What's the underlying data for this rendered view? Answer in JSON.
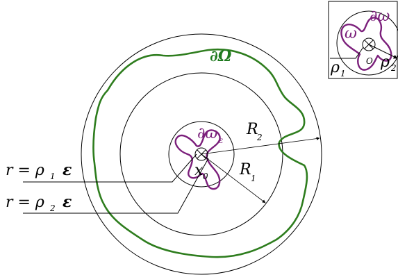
{
  "colors": {
    "boundary_omega": "#2e7d1e",
    "boundary_small": "#7b1f7b",
    "circles": "#000000",
    "arrows": "#000000"
  },
  "main": {
    "boundary_label": "∂Ω",
    "inner_boundary_label": "∂ω",
    "inner_boundary_sub": "ε",
    "center_label": "x",
    "center_sub": "0",
    "radius_outer_label": "R",
    "radius_outer_sub": "2",
    "radius_inner_label": "R",
    "radius_inner_sub": "1",
    "r1_text_prefix": "r = ρ",
    "r1_sub": "1",
    "r1_suffix": "ε",
    "r2_text_prefix": "r = ρ",
    "r2_sub": "2",
    "r2_suffix": "ε",
    "center_mark_icon": "cross-circle-icon"
  },
  "inset": {
    "omega_label": "ω",
    "boundary_label": "∂ω",
    "origin_label": "O",
    "rho1_label": "ρ",
    "rho1_sub": "1",
    "rho2_label": "ρ",
    "rho2_sub": "2"
  }
}
